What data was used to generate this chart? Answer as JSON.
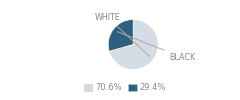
{
  "labels": [
    "WHITE",
    "BLACK"
  ],
  "values": [
    70.6,
    29.4
  ],
  "colors": [
    "#d4dce6",
    "#2d5f7e"
  ],
  "legend_labels": [
    "70.6%",
    "29.4%"
  ],
  "startangle": 90,
  "background_color": "#ffffff",
  "label_fontsize": 5.8,
  "legend_fontsize": 6.0,
  "label_color": "#888888",
  "line_color": "#aaaaaa"
}
